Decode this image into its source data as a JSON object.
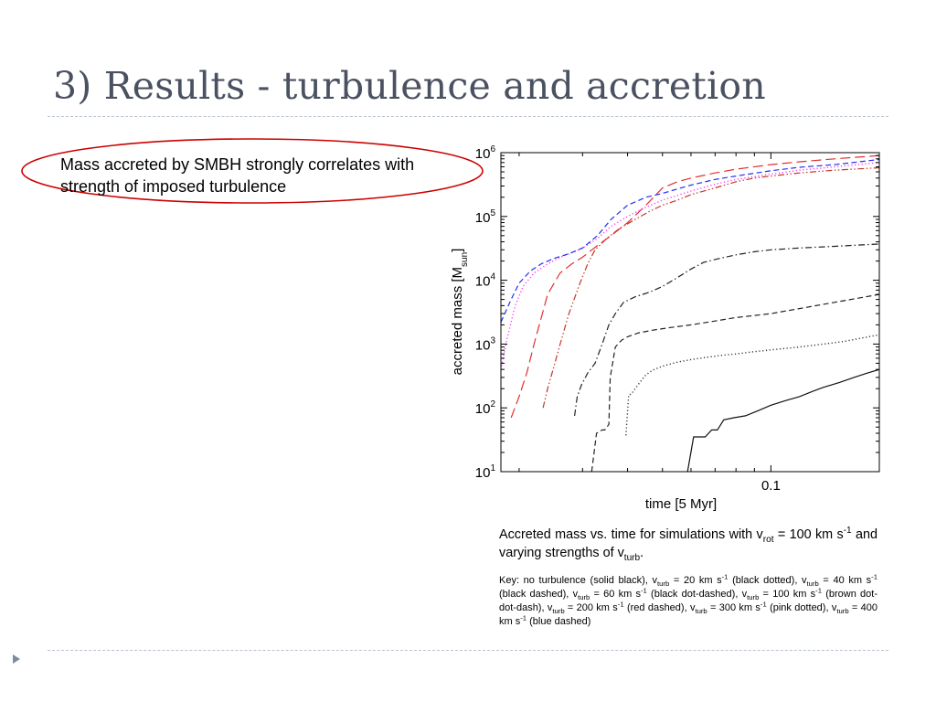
{
  "slide": {
    "title": "3) Results - turbulence and accretion",
    "callout": "Mass accreted by SMBH strongly correlates with strength of imposed turbulence",
    "accent_color": "#cc0000"
  },
  "caption": {
    "p1_a": "Accreted mass vs. time for simulations with v",
    "p1_sub_rot": "rot",
    "p1_b": " = 100 km s",
    "p1_sup_1": "-1",
    "p1_c": " and varying strengths of v",
    "p1_sub_turb": "turb",
    "p1_d": ".",
    "key": {
      "label": "Key: no turbulence (solid black), v",
      "t20": " = 20 km s",
      "t20_desc": " (black dotted), v",
      "t40": " = 40 km s",
      "t40_desc": " (black dashed), v",
      "t60": " = 60 km s",
      "t60_desc": " (black dot-dashed), v",
      "t100": " = 100 km s",
      "t100_desc": " (brown dot-dot-dash), v",
      "t200": " = 200 km s",
      "t200_desc": " (red dashed), v",
      "t300": " = 300 km s",
      "t300_desc": " (pink dotted), v",
      "t400": " = 400 km s",
      "t400_desc": " (blue dashed)",
      "sub": "turb",
      "sup": "-1"
    }
  },
  "chart_data": {
    "type": "line",
    "xlabel": "time [5 Myr]",
    "ylabel_main": "accreted mass [M",
    "ylabel_sub": "sun",
    "ylabel_end": "]",
    "x_scale": "log",
    "y_scale": "log",
    "xlim": [
      0.0178,
      0.2
    ],
    "ylim": [
      10,
      1000000
    ],
    "x_ticks": [
      {
        "value": 0.1,
        "label": "0.1"
      }
    ],
    "y_ticks": [
      {
        "value": 10,
        "base": "10",
        "exp": "1"
      },
      {
        "value": 100,
        "base": "10",
        "exp": "2"
      },
      {
        "value": 1000,
        "base": "10",
        "exp": "3"
      },
      {
        "value": 10000,
        "base": "10",
        "exp": "4"
      },
      {
        "value": 100000,
        "base": "10",
        "exp": "5"
      },
      {
        "value": 1000000,
        "base": "10",
        "exp": "6"
      }
    ],
    "series": [
      {
        "style": "solid",
        "color": "#111111",
        "x": [
          0.0587,
          0.061,
          0.0635,
          0.0657,
          0.0685,
          0.071,
          0.074,
          0.079,
          0.085,
          0.092,
          0.1,
          0.11,
          0.12,
          0.13,
          0.14,
          0.155,
          0.17,
          0.185,
          0.2
        ],
        "y": [
          10,
          35,
          35,
          35,
          45,
          45,
          65,
          70,
          75,
          90,
          110,
          130,
          150,
          180,
          210,
          250,
          300,
          350,
          400
        ]
      },
      {
        "style": "dotted",
        "color": "#333333",
        "x": [
          0.0396,
          0.0403,
          0.041,
          0.042,
          0.0435,
          0.045,
          0.047,
          0.05,
          0.055,
          0.06,
          0.065,
          0.072,
          0.08,
          0.09,
          0.1,
          0.12,
          0.14,
          0.16,
          0.18,
          0.2
        ],
        "y": [
          37,
          160,
          165,
          200,
          260,
          330,
          390,
          450,
          520,
          570,
          610,
          660,
          700,
          760,
          810,
          900,
          1000,
          1100,
          1250,
          1400
        ]
      },
      {
        "style": "dashed",
        "color": "#222222",
        "x": [
          0.0318,
          0.0328,
          0.034,
          0.0346,
          0.0355,
          0.0358,
          0.037,
          0.0385,
          0.04,
          0.043,
          0.047,
          0.052,
          0.06,
          0.07,
          0.08,
          0.1,
          0.12,
          0.15,
          0.2
        ],
        "y": [
          10,
          40,
          45,
          45,
          55,
          300,
          900,
          1150,
          1300,
          1500,
          1650,
          1800,
          2000,
          2300,
          2600,
          3000,
          3600,
          4500,
          6000
        ]
      },
      {
        "style": "dashdot",
        "color": "#222222",
        "x": [
          0.0285,
          0.029,
          0.0298,
          0.031,
          0.0325,
          0.034,
          0.0355,
          0.037,
          0.039,
          0.042,
          0.046,
          0.05,
          0.055,
          0.06,
          0.065,
          0.072,
          0.08,
          0.09,
          0.1,
          0.12,
          0.15,
          0.2
        ],
        "y": [
          75,
          150,
          230,
          350,
          500,
          1000,
          2000,
          3000,
          4500,
          5500,
          6500,
          8000,
          11000,
          15000,
          19000,
          22000,
          25000,
          28000,
          30000,
          32000,
          34000,
          37000
        ]
      },
      {
        "style": "dashdotdot",
        "color": "#c0392b",
        "x": [
          0.0233,
          0.024,
          0.025,
          0.026,
          0.0275,
          0.0295,
          0.031,
          0.0325,
          0.035,
          0.038,
          0.042,
          0.046,
          0.05,
          0.055,
          0.06,
          0.07,
          0.08,
          0.09,
          0.1,
          0.12,
          0.15,
          0.2
        ],
        "y": [
          100,
          200,
          450,
          1000,
          3000,
          9000,
          18000,
          30000,
          45000,
          65000,
          90000,
          120000,
          150000,
          180000,
          220000,
          280000,
          350000,
          400000,
          430000,
          480000,
          530000,
          580000
        ]
      },
      {
        "style": "longdash",
        "color": "#e03030",
        "x": [
          0.019,
          0.02,
          0.021,
          0.022,
          0.023,
          0.024,
          0.026,
          0.028,
          0.03,
          0.033,
          0.036,
          0.04,
          0.045,
          0.05,
          0.055,
          0.06,
          0.07,
          0.08,
          0.1,
          0.12,
          0.15,
          0.2
        ],
        "y": [
          70,
          150,
          350,
          1000,
          2500,
          6000,
          13000,
          18000,
          23000,
          35000,
          50000,
          80000,
          150000,
          280000,
          350000,
          400000,
          480000,
          550000,
          650000,
          720000,
          800000,
          900000
        ]
      },
      {
        "style": "dotted",
        "color": "#ff33ff",
        "x": [
          0.0178,
          0.0185,
          0.0195,
          0.0205,
          0.022,
          0.024,
          0.026,
          0.028,
          0.03,
          0.033,
          0.036,
          0.04,
          0.045,
          0.05,
          0.06,
          0.07,
          0.08,
          0.1,
          0.12,
          0.15,
          0.2
        ],
        "y": [
          400,
          1200,
          4000,
          8000,
          13000,
          18000,
          23000,
          27000,
          32000,
          45000,
          70000,
          100000,
          140000,
          180000,
          250000,
          320000,
          380000,
          460000,
          530000,
          600000,
          700000
        ]
      },
      {
        "style": "dashed",
        "color": "#2233ee",
        "x": [
          0.0178,
          0.019,
          0.02,
          0.0215,
          0.023,
          0.025,
          0.0275,
          0.03,
          0.033,
          0.036,
          0.04,
          0.045,
          0.05,
          0.055,
          0.06,
          0.07,
          0.08,
          0.1,
          0.12,
          0.15,
          0.2
        ],
        "y": [
          2200,
          5000,
          9000,
          14000,
          18000,
          22000,
          26000,
          32000,
          50000,
          90000,
          150000,
          200000,
          230000,
          270000,
          310000,
          380000,
          430000,
          520000,
          590000,
          650000,
          780000
        ]
      }
    ]
  }
}
